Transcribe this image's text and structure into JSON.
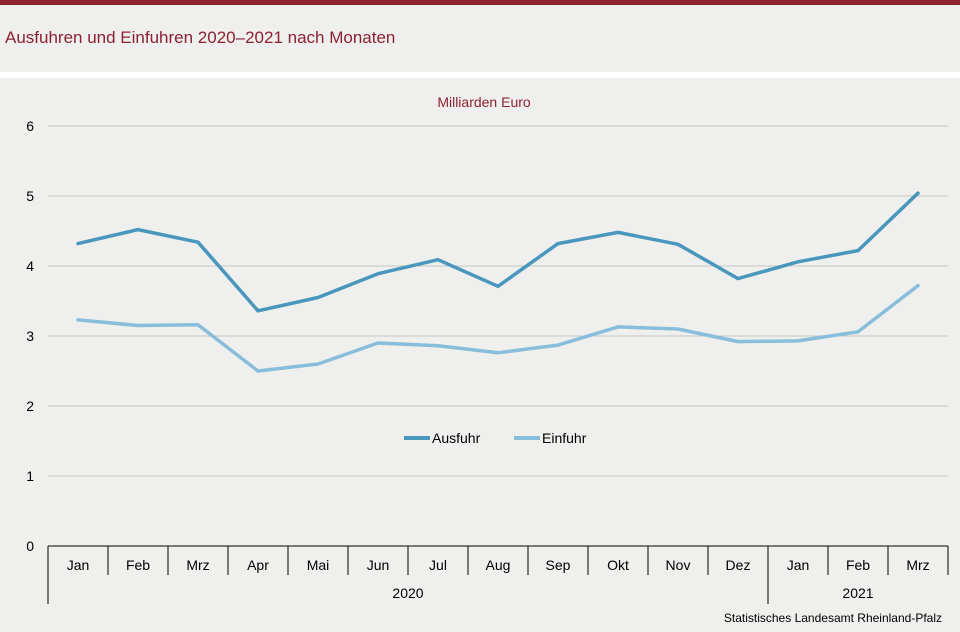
{
  "title": "Ausfuhren und Einfuhren 2020–2021 nach Monaten",
  "source": "Statistisches Landesamt  Rheinland-Pfalz",
  "colors": {
    "brand": "#8b2232",
    "ausfuhr": "#4a97bd",
    "einfuhr": "#88bedb",
    "grid": "#c7c7c7"
  },
  "chart_data": {
    "type": "line",
    "unit_label": "Milliarden Euro",
    "categories": [
      "Jan",
      "Feb",
      "Mrz",
      "Apr",
      "Mai",
      "Jun",
      "Jul",
      "Aug",
      "Sep",
      "Okt",
      "Nov",
      "Dez",
      "Jan",
      "Feb",
      "Mrz"
    ],
    "year_groups": [
      {
        "label": "2020",
        "count": 12
      },
      {
        "label": "2021",
        "count": 3
      }
    ],
    "series": [
      {
        "name": "Ausfuhr",
        "values": [
          4.32,
          4.52,
          4.34,
          3.36,
          3.55,
          3.89,
          4.09,
          3.71,
          4.32,
          4.48,
          4.31,
          3.82,
          4.06,
          4.22,
          5.04
        ]
      },
      {
        "name": "Einfuhr",
        "values": [
          3.23,
          3.15,
          3.16,
          2.5,
          2.6,
          2.9,
          2.86,
          2.76,
          2.87,
          3.13,
          3.1,
          2.92,
          2.93,
          3.06,
          3.72
        ]
      }
    ],
    "yticks": [
      "0",
      "1",
      "2",
      "3",
      "4",
      "5",
      "6"
    ],
    "ylim": [
      0,
      6
    ],
    "grid": true,
    "legend_position": "center"
  }
}
